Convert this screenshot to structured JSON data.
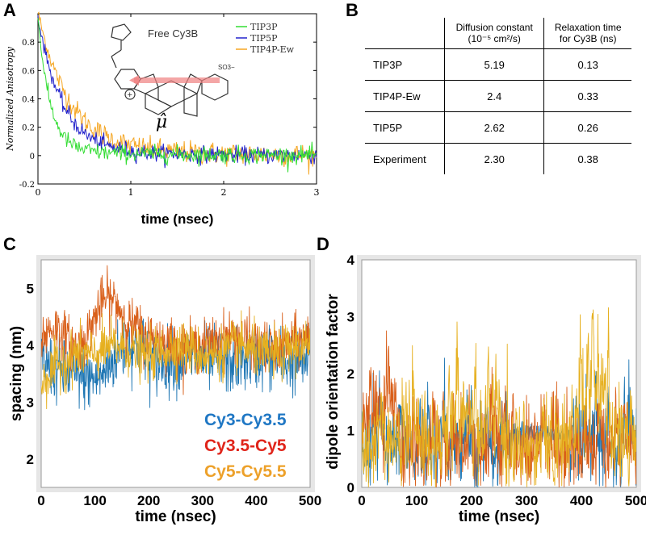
{
  "panels": {
    "a": "A",
    "b": "B",
    "c": "C",
    "d": "D"
  },
  "colors": {
    "tip3p": "#33dd33",
    "tip5p": "#2222cc",
    "tip4pew": "#f5a623",
    "cy3_cy35": "#1f77c4",
    "cy35_cy5": "#e0241a",
    "cy5_cy55": "#eda12a",
    "trace_c_blue": "#1f77b4",
    "trace_c_orange": "#d95f1a",
    "trace_c_yellow": "#e6b020",
    "arrow": "#f08080"
  },
  "chart_data": [
    {
      "panel": "A",
      "type": "line",
      "xlabel": "time (nsec)",
      "ylabel": "Normalized Anisotropy",
      "xlim": [
        0,
        3
      ],
      "ylim": [
        -0.2,
        1.0
      ],
      "xticks": [
        0,
        1,
        2,
        3
      ],
      "yticks": [
        -0.2,
        0,
        0.2,
        0.4,
        0.6,
        0.8
      ],
      "inset_title": "Free Cy3B",
      "inset_symbol": "μ̂",
      "inset_sulfonate": "SO3−",
      "inset_charge": "+",
      "legend_position": "top-right",
      "series": [
        {
          "name": "TIP3P",
          "tau": 0.13,
          "noise": 0.03
        },
        {
          "name": "TIP5P",
          "tau": 0.26,
          "noise": 0.03
        },
        {
          "name": "TIP4P-Ew",
          "tau": 0.33,
          "noise": 0.04
        }
      ]
    },
    {
      "panel": "C",
      "type": "line",
      "xlabel": "time (nsec)",
      "ylabel": "spacing (nm)",
      "xlim": [
        0,
        500
      ],
      "ylim": [
        1.5,
        5.5
      ],
      "xticks": [
        0,
        100,
        200,
        300,
        400,
        500
      ],
      "yticks": [
        2,
        3,
        4,
        5
      ],
      "legend_position": "bottom-right",
      "series": [
        {
          "name": "Cy3-Cy3.5",
          "mean": 3.8
        },
        {
          "name": "Cy3.5-Cy5",
          "mean": 4.1
        },
        {
          "name": "Cy5-Cy5.5",
          "mean": 3.9
        }
      ]
    },
    {
      "panel": "D",
      "type": "line",
      "xlabel": "time (nsec)",
      "ylabel": "dipole orientation factor",
      "xlim": [
        0,
        500
      ],
      "ylim": [
        0,
        4
      ],
      "xticks": [
        0,
        100,
        200,
        300,
        400,
        500
      ],
      "yticks": [
        0,
        1,
        2,
        3,
        4
      ],
      "series": [
        {
          "name": "Cy3-Cy3.5",
          "mean": 0.8
        },
        {
          "name": "Cy3.5-Cy5",
          "mean": 0.7
        },
        {
          "name": "Cy5-Cy5.5",
          "mean": 0.9
        }
      ]
    }
  ],
  "table": {
    "headers": [
      {
        "line1": "Diffusion constant",
        "line2": "(10⁻⁵ cm²/s)"
      },
      {
        "line1": "Relaxation time",
        "line2": "for Cy3B (ns)"
      }
    ],
    "rows": [
      {
        "label": "TIP3P",
        "diffusion": "5.19",
        "relax": "0.13"
      },
      {
        "label": "TIP4P-Ew",
        "diffusion": "2.4",
        "relax": "0.33"
      },
      {
        "label": "TIP5P",
        "diffusion": "2.62",
        "relax": "0.26"
      },
      {
        "label": "Experiment",
        "diffusion": "2.30",
        "relax": "0.38"
      }
    ]
  }
}
